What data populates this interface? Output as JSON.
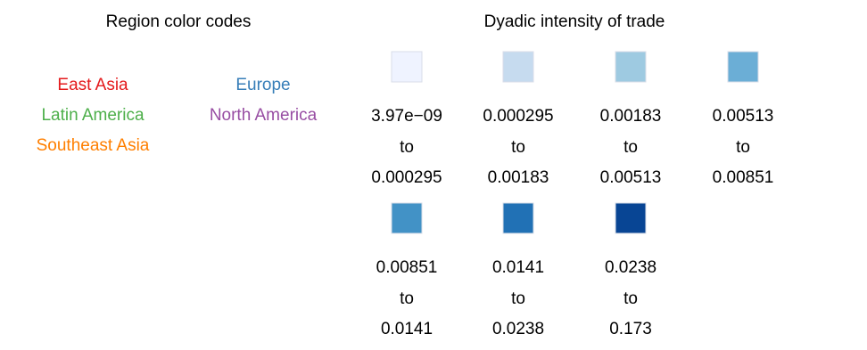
{
  "region_legend": {
    "title": "Region color codes",
    "regions": [
      {
        "name": "East Asia",
        "color": "#e41a1c"
      },
      {
        "name": "Europe",
        "color": "#377eb8"
      },
      {
        "name": "Latin America",
        "color": "#4daf4a"
      },
      {
        "name": "North America",
        "color": "#984ea3"
      },
      {
        "name": "Southeast Asia",
        "color": "#ff7f00"
      }
    ]
  },
  "intensity_legend": {
    "title": "Dyadic intensity of trade",
    "connector": "to",
    "bins": [
      {
        "from": "3.97e−09",
        "to": "0.000295",
        "color": "#eff3ff"
      },
      {
        "from": "0.000295",
        "to": "0.00183",
        "color": "#c6dbef"
      },
      {
        "from": "0.00183",
        "to": "0.00513",
        "color": "#9ecae1"
      },
      {
        "from": "0.00513",
        "to": "0.00851",
        "color": "#6baed6"
      },
      {
        "from": "0.00851",
        "to": "0.0141",
        "color": "#4292c6"
      },
      {
        "from": "0.0141",
        "to": "0.0238",
        "color": "#2171b5"
      },
      {
        "from": "0.0238",
        "to": "0.173",
        "color": "#084594"
      }
    ]
  },
  "chart_data": {
    "type": "table",
    "regions": [
      "East Asia",
      "Europe",
      "Latin America",
      "North America",
      "Southeast Asia"
    ],
    "intensity_bins": [
      [
        3.97e-09,
        0.000295
      ],
      [
        0.000295,
        0.00183
      ],
      [
        0.00183,
        0.00513
      ],
      [
        0.00513,
        0.00851
      ],
      [
        0.00851,
        0.0141
      ],
      [
        0.0141,
        0.0238
      ],
      [
        0.0238,
        0.173
      ]
    ]
  }
}
